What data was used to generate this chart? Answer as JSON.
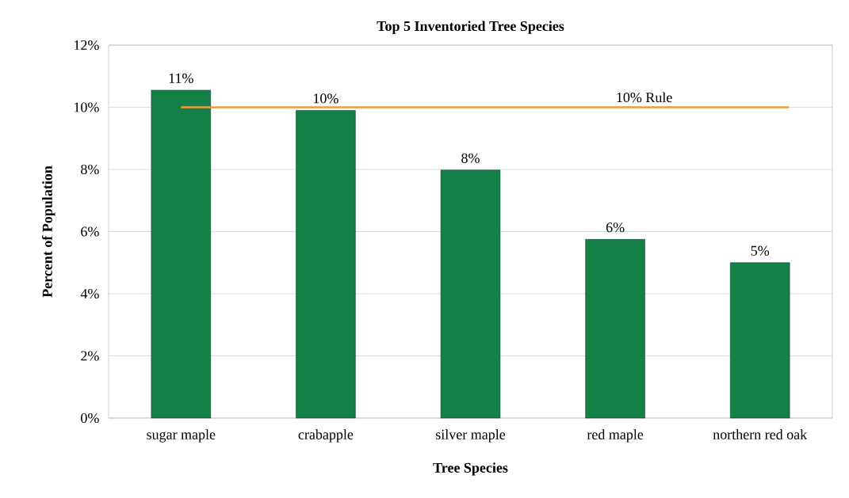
{
  "chart_data": {
    "type": "bar",
    "title": "Top 5 Inventoried Tree Species",
    "xlabel": "Tree Species",
    "ylabel": "Percent of Population",
    "categories": [
      "sugar maple",
      "crabapple",
      "silver maple",
      "red maple",
      "northern red oak"
    ],
    "values": [
      10.55,
      9.9,
      7.98,
      5.75,
      5.0
    ],
    "value_labels": [
      "11%",
      "10%",
      "8%",
      "6%",
      "5%"
    ],
    "color": "#138048",
    "ylim": [
      0,
      12
    ],
    "yticks": [
      {
        "value": 0,
        "label": "0%"
      },
      {
        "value": 2,
        "label": "2%"
      },
      {
        "value": 4,
        "label": "4%"
      },
      {
        "value": 6,
        "label": "6%"
      },
      {
        "value": 8,
        "label": "8%"
      },
      {
        "value": 10,
        "label": "10%"
      },
      {
        "value": 12,
        "label": "12%"
      }
    ],
    "grid": "y",
    "ref_lines": [
      {
        "axis": "y",
        "value": 10,
        "label": "10% Rule",
        "color": "#ed9b3a"
      }
    ]
  }
}
